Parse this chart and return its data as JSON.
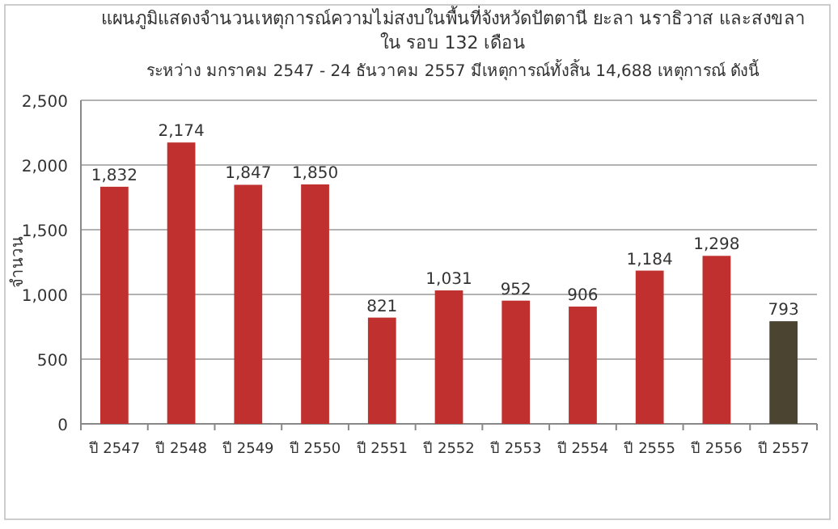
{
  "chart_data": {
    "type": "bar",
    "title": "แผนภูมิแสดงจำนวนเหตุการณ์ความไม่สงบในพื้นที่จังหวัดปัตตานี ยะลา นราธิวาส และสงขลาใน รอบ 132 เดือน",
    "subtitle": "ระหว่าง มกราคม 2547 - 24 ธันวาคม 2557   มีเหตุการณ์ทั้งสิ้น 14,688 เหตุการณ์ ดังนี้",
    "ylabel": "จำนวน",
    "categories": [
      "ปี 2547",
      "ปี 2548",
      "ปี 2549",
      "ปี 2550",
      "ปี 2551",
      "ปี 2552",
      "ปี 2553",
      "ปี 2554",
      "ปี 2555",
      "ปี 2556",
      "ปี 2557"
    ],
    "values": [
      1832,
      2174,
      1847,
      1850,
      821,
      1031,
      952,
      906,
      1184,
      1298,
      793
    ],
    "colors": [
      "#c0302e",
      "#c0302e",
      "#c0302e",
      "#c0302e",
      "#c0302e",
      "#c0302e",
      "#c0302e",
      "#c0302e",
      "#c0302e",
      "#c0302e",
      "#4b4430"
    ],
    "value_labels": [
      "1,832",
      "2,174",
      "1,847",
      "1,850",
      "821",
      "1,031",
      "952",
      "906",
      "1,184",
      "1,298",
      "793"
    ],
    "ylim": [
      0,
      2500
    ],
    "yticks": [
      0,
      500,
      {
        "value": 1000,
        "label": "1,000"
      },
      {
        "value": 1500,
        "label": "1,500"
      },
      {
        "value": 2000,
        "label": "2,000"
      },
      {
        "value": 2500,
        "label": "2,500"
      }
    ],
    "grid": "y"
  }
}
